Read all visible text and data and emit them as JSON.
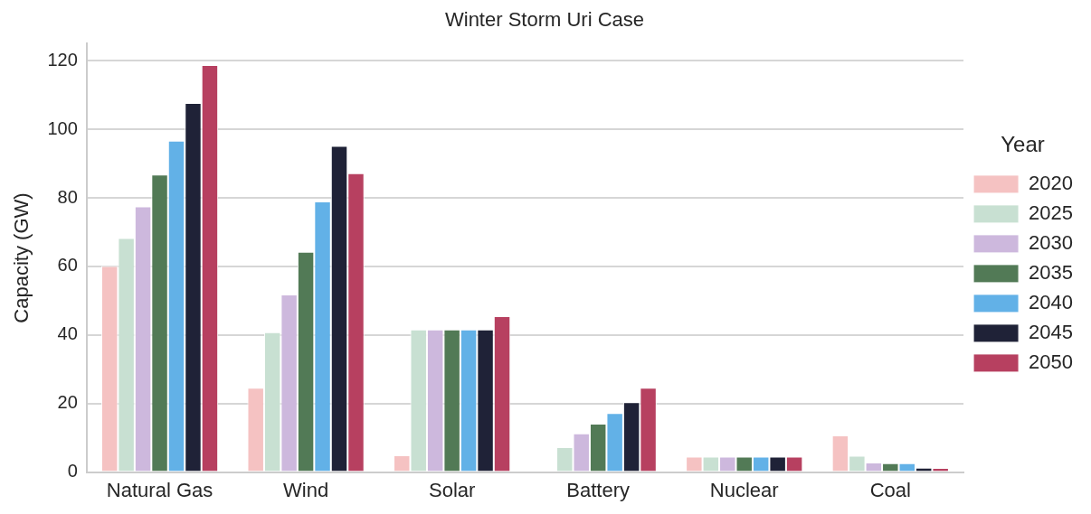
{
  "chart_data": {
    "type": "bar",
    "title": "Winter Storm Uri Case",
    "ylabel": "Capacity (GW)",
    "legend_title": "Year",
    "legend": "right",
    "grid": "y",
    "categories": [
      "Natural Gas",
      "Wind",
      "Solar",
      "Battery",
      "Nuclear",
      "Coal"
    ],
    "ylim": [
      0,
      125
    ],
    "yticks": [
      0,
      20,
      40,
      60,
      80,
      100,
      120
    ],
    "series": [
      {
        "name": "2020",
        "color": "#f5c2c2",
        "values": [
          60.1,
          24.6,
          4.9,
          0,
          4.5,
          10.7
        ]
      },
      {
        "name": "2025",
        "color": "#c8e0d2",
        "values": [
          68.3,
          40.8,
          41.6,
          7.3,
          4.5,
          4.8
        ]
      },
      {
        "name": "2030",
        "color": "#cdb8dd",
        "values": [
          77.5,
          51.8,
          41.6,
          11.3,
          4.5,
          2.8
        ]
      },
      {
        "name": "2035",
        "color": "#527a56",
        "values": [
          86.8,
          64.3,
          41.6,
          14.1,
          4.5,
          2.6
        ]
      },
      {
        "name": "2040",
        "color": "#62b1e7",
        "values": [
          96.7,
          79,
          41.6,
          17.2,
          4.5,
          2.6
        ]
      },
      {
        "name": "2045",
        "color": "#1f2237",
        "values": [
          107.7,
          95.2,
          41.6,
          20.4,
          4.5,
          1.3
        ]
      },
      {
        "name": "2050",
        "color": "#b74060",
        "values": [
          118.8,
          87.2,
          45.5,
          24.6,
          4.5,
          1.2
        ]
      }
    ]
  }
}
